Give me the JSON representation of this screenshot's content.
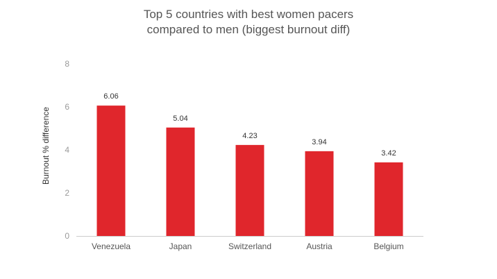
{
  "chart_data": {
    "type": "bar",
    "title_lines": [
      "Top 5 countries with best women pacers",
      "compared to men (biggest burnout diff)"
    ],
    "xlabel": "",
    "ylabel": "Burnout  % difference",
    "categories": [
      "Venezuela",
      "Japan",
      "Switzerland",
      "Austria",
      "Belgium"
    ],
    "values": [
      6.06,
      5.04,
      4.23,
      3.94,
      3.42
    ],
    "data_labels": [
      "6.06",
      "5.04",
      "4.23",
      "3.94",
      "3.42"
    ],
    "ylim": [
      0,
      8
    ],
    "yticks": [
      0,
      2,
      4,
      6,
      8
    ],
    "grid": false,
    "legend": "none",
    "bar_color": "#e0262c"
  }
}
